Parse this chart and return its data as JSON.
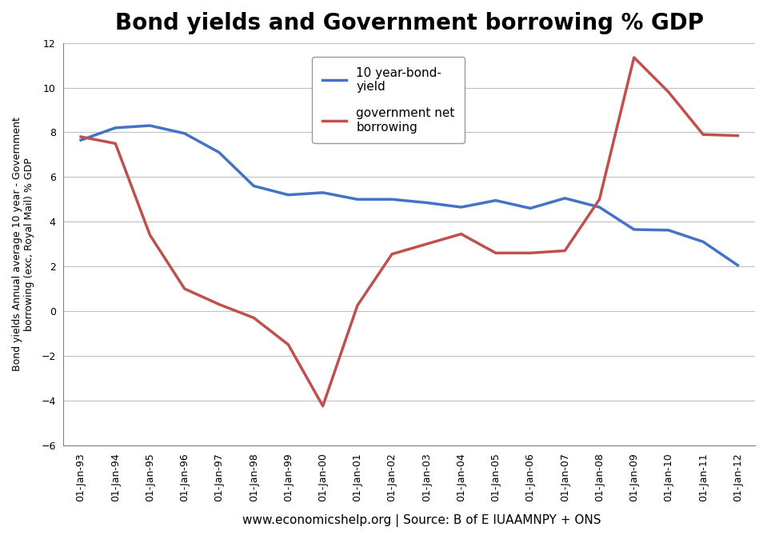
{
  "title": "Bond yields and Government borrowing % GDP",
  "ylabel": "Bond yields Annual average 10 year - Government\nborrowing (exc, Royal Mail) % GDP",
  "footer": "www.economicshelp.org | Source: B of E IUAAMNPY + ONS",
  "ylim": [
    -6,
    12
  ],
  "yticks": [
    -6,
    -4,
    -2,
    0,
    2,
    4,
    6,
    8,
    10,
    12
  ],
  "x_labels": [
    "01-Jan-93",
    "01-Jan-94",
    "01-Jan-95",
    "01-Jan-96",
    "01-Jan-97",
    "01-Jan-98",
    "01-Jan-99",
    "01-Jan-00",
    "01-Jan-01",
    "01-Jan-02",
    "01-Jan-03",
    "01-Jan-04",
    "01-Jan-05",
    "01-Jan-06",
    "01-Jan-07",
    "01-Jan-08",
    "01-Jan-09",
    "01-Jan-10",
    "01-Jan-11",
    "01-Jan-12"
  ],
  "bond_yield": {
    "label": "10 year-bond-\nyield",
    "color": "#4472C4",
    "values": [
      7.65,
      8.2,
      8.3,
      7.95,
      7.1,
      5.6,
      5.2,
      5.3,
      5.0,
      5.0,
      4.85,
      4.65,
      4.95,
      4.6,
      5.05,
      4.65,
      3.65,
      3.62,
      3.1,
      2.05
    ]
  },
  "govt_borrowing": {
    "label": "government net\nborrowing",
    "color": "#C0504D",
    "values": [
      7.8,
      7.5,
      3.4,
      1.0,
      0.3,
      -0.3,
      -1.5,
      -4.25,
      0.25,
      2.55,
      3.0,
      3.45,
      2.6,
      2.6,
      2.7,
      5.0,
      11.35,
      9.8,
      7.9,
      7.85
    ]
  },
  "fig_bg_color": "#FFFFFF",
  "plot_bg_color": "#FFFFFF",
  "grid_color": "#C0C0C0",
  "border_color": "#808080",
  "title_fontsize": 20,
  "axis_label_fontsize": 9,
  "tick_fontsize": 9,
  "legend_fontsize": 11,
  "footer_fontsize": 11
}
